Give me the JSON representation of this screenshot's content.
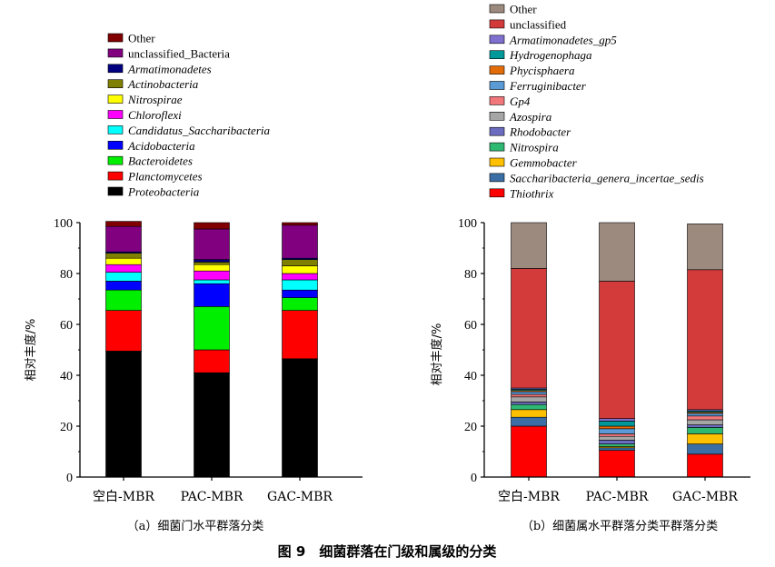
{
  "figure": {
    "title": "图 9　细菌群落在门级和属级的分类"
  },
  "chart_data": [
    {
      "type": "bar",
      "stacked": true,
      "caption": "（a）细菌门水平群落分类",
      "ylabel": "相对丰度/%",
      "xlabel": "",
      "ylim": [
        0,
        100
      ],
      "yticks": [
        0,
        20,
        40,
        60,
        80,
        100
      ],
      "categories": [
        "空白-MBR",
        "PAC-MBR",
        "GAC-MBR"
      ],
      "series": [
        {
          "name": "Proteobacteria",
          "italic": true,
          "color": "#000000",
          "values": [
            49.5,
            41,
            46.5
          ]
        },
        {
          "name": "Planctomycetes",
          "italic": true,
          "color": "#ff0000",
          "values": [
            16,
            9,
            19
          ]
        },
        {
          "name": "Bacteroidetes",
          "italic": true,
          "color": "#00ee00",
          "values": [
            8,
            17,
            5
          ]
        },
        {
          "name": "Acidobacteria",
          "italic": true,
          "color": "#0000ff",
          "values": [
            3.5,
            9,
            3
          ]
        },
        {
          "name": "Candidatus_Saccharibacteria",
          "italic": true,
          "color": "#00ffff",
          "values": [
            3.5,
            1.5,
            4
          ]
        },
        {
          "name": "Chloroflexi",
          "italic": true,
          "color": "#ff00ff",
          "values": [
            3,
            3.5,
            2.5
          ]
        },
        {
          "name": "Nitrospirae",
          "italic": true,
          "color": "#ffff00",
          "values": [
            2.5,
            2.5,
            3
          ]
        },
        {
          "name": "Actinobacteria",
          "italic": true,
          "color": "#808000",
          "values": [
            2,
            1,
            2.5
          ]
        },
        {
          "name": "Armatimonadetes",
          "italic": true,
          "color": "#000080",
          "values": [
            0.5,
            1,
            0.5
          ]
        },
        {
          "name": "unclassified_Bacteria",
          "italic": false,
          "color": "#800080",
          "values": [
            10,
            12,
            13
          ]
        },
        {
          "name": "Other",
          "italic": false,
          "color": "#800000",
          "values": [
            2,
            2.5,
            1
          ]
        }
      ]
    },
    {
      "type": "bar",
      "stacked": true,
      "caption": "（b）细菌属水平群落分类平群落分类",
      "ylabel": "相对丰度/%",
      "xlabel": "",
      "ylim": [
        0,
        100
      ],
      "yticks": [
        0,
        20,
        40,
        60,
        80,
        100
      ],
      "categories": [
        "空白-MBR",
        "PAC-MBR",
        "GAC-MBR"
      ],
      "series": [
        {
          "name": "Thiothrix",
          "italic": true,
          "color": "#ff0000",
          "values": [
            20,
            10.5,
            9
          ]
        },
        {
          "name": "Saccharibacteria_genera_incertae_sedis",
          "italic": true,
          "color": "#3a6ea5",
          "values": [
            3.5,
            1,
            4
          ]
        },
        {
          "name": "Gemmobacter",
          "italic": true,
          "color": "#ffc000",
          "values": [
            3,
            0.5,
            4
          ]
        },
        {
          "name": "Nitrospira",
          "italic": true,
          "color": "#2eb872",
          "values": [
            2,
            1,
            2.5
          ]
        },
        {
          "name": "Rhodobacter",
          "italic": true,
          "color": "#6b6bbf",
          "values": [
            1,
            1.5,
            1
          ]
        },
        {
          "name": "Azospira",
          "italic": true,
          "color": "#a6a6a6",
          "values": [
            2,
            1.5,
            2
          ]
        },
        {
          "name": "Gp4",
          "italic": true,
          "color": "#f2777a",
          "values": [
            1,
            1,
            1.5
          ]
        },
        {
          "name": "Ferruginibacter",
          "italic": true,
          "color": "#5b9bd5",
          "values": [
            1,
            2,
            1
          ]
        },
        {
          "name": "Phycisphaera",
          "italic": true,
          "color": "#e36c09",
          "values": [
            0.5,
            1,
            0.5
          ]
        },
        {
          "name": "Hydrogenophaga",
          "italic": true,
          "color": "#009999",
          "values": [
            0.5,
            2,
            0.5
          ]
        },
        {
          "name": "Armatimonadetes_gp5",
          "italic": true,
          "color": "#7f6fcf",
          "values": [
            0.5,
            1,
            0.5
          ]
        },
        {
          "name": "unclassified",
          "italic": false,
          "color": "#d33b3b",
          "values": [
            47,
            54,
            55
          ]
        },
        {
          "name": "Other",
          "italic": false,
          "color": "#9c8a7e",
          "values": [
            18,
            23,
            18
          ]
        }
      ]
    }
  ]
}
